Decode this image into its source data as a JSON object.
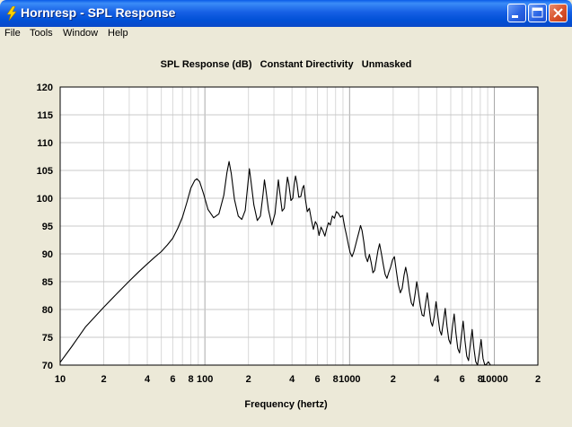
{
  "window": {
    "title": "Hornresp - SPL Response"
  },
  "menu": [
    "File",
    "Tools",
    "Window",
    "Help"
  ],
  "chart_data": {
    "type": "line",
    "title_parts": [
      "SPL Response (dB)",
      "Constant Directivity",
      "Unmasked"
    ],
    "xlabel": "Frequency (hertz)",
    "ylabel": "",
    "xscale": "log",
    "xlim": [
      10,
      20000
    ],
    "ylim": [
      70,
      120
    ],
    "x_tick_labels": [
      {
        "value": 10,
        "label": "10"
      },
      {
        "value": 20,
        "label": "2"
      },
      {
        "value": 40,
        "label": "4"
      },
      {
        "value": 60,
        "label": "6"
      },
      {
        "value": 80,
        "label": "8"
      },
      {
        "value": 100,
        "label": "100"
      },
      {
        "value": 200,
        "label": "2"
      },
      {
        "value": 400,
        "label": "4"
      },
      {
        "value": 600,
        "label": "6"
      },
      {
        "value": 800,
        "label": "8"
      },
      {
        "value": 1000,
        "label": "1000"
      },
      {
        "value": 2000,
        "label": "2"
      },
      {
        "value": 4000,
        "label": "4"
      },
      {
        "value": 6000,
        "label": "6"
      },
      {
        "value": 8000,
        "label": "8"
      },
      {
        "value": 10000,
        "label": "10000"
      },
      {
        "value": 20000,
        "label": "2"
      }
    ],
    "y_ticks": [
      70,
      75,
      80,
      85,
      90,
      95,
      100,
      105,
      110,
      115,
      120
    ],
    "grid": true,
    "series": [
      {
        "color": "#000000",
        "points": [
          [
            10,
            70.5
          ],
          [
            12,
            73.3
          ],
          [
            15,
            76.9
          ],
          [
            20,
            80.4
          ],
          [
            25,
            83.0
          ],
          [
            30,
            85.1
          ],
          [
            35,
            86.8
          ],
          [
            40,
            88.2
          ],
          [
            45,
            89.4
          ],
          [
            50,
            90.4
          ],
          [
            55,
            91.6
          ],
          [
            60,
            92.8
          ],
          [
            65,
            94.6
          ],
          [
            70,
            96.6
          ],
          [
            75,
            99.2
          ],
          [
            80,
            101.8
          ],
          [
            85,
            103.2
          ],
          [
            88,
            103.5
          ],
          [
            92,
            103.0
          ],
          [
            98,
            100.8
          ],
          [
            105,
            98.0
          ],
          [
            115,
            96.5
          ],
          [
            125,
            97.2
          ],
          [
            135,
            100.5
          ],
          [
            142,
            104.6
          ],
          [
            147,
            106.6
          ],
          [
            152,
            104.5
          ],
          [
            160,
            99.8
          ],
          [
            170,
            96.8
          ],
          [
            180,
            96.2
          ],
          [
            190,
            97.8
          ],
          [
            198,
            102.5
          ],
          [
            203,
            105.3
          ],
          [
            208,
            103.2
          ],
          [
            218,
            98.8
          ],
          [
            230,
            96.0
          ],
          [
            242,
            96.8
          ],
          [
            252,
            100.7
          ],
          [
            258,
            103.3
          ],
          [
            264,
            101.5
          ],
          [
            275,
            97.9
          ],
          [
            290,
            95.2
          ],
          [
            305,
            97.2
          ],
          [
            316,
            101.2
          ],
          [
            322,
            103.3
          ],
          [
            329,
            101.2
          ],
          [
            342,
            97.7
          ],
          [
            354,
            98.2
          ],
          [
            364,
            101.5
          ],
          [
            372,
            103.8
          ],
          [
            380,
            102.6
          ],
          [
            393,
            99.6
          ],
          [
            405,
            100.0
          ],
          [
            414,
            102.5
          ],
          [
            423,
            104.0
          ],
          [
            432,
            102.8
          ],
          [
            445,
            100.2
          ],
          [
            460,
            100.3
          ],
          [
            473,
            101.8
          ],
          [
            483,
            102.3
          ],
          [
            495,
            99.8
          ],
          [
            510,
            97.6
          ],
          [
            527,
            98.2
          ],
          [
            545,
            96.1
          ],
          [
            562,
            94.4
          ],
          [
            580,
            95.8
          ],
          [
            597,
            95.2
          ],
          [
            615,
            93.3
          ],
          [
            635,
            94.8
          ],
          [
            655,
            94.1
          ],
          [
            675,
            93.2
          ],
          [
            695,
            94.6
          ],
          [
            715,
            95.6
          ],
          [
            735,
            95.2
          ],
          [
            760,
            96.8
          ],
          [
            785,
            96.4
          ],
          [
            810,
            97.6
          ],
          [
            835,
            97.3
          ],
          [
            865,
            96.6
          ],
          [
            895,
            96.9
          ],
          [
            925,
            94.8
          ],
          [
            955,
            93.2
          ],
          [
            985,
            91.4
          ],
          [
            1010,
            90.2
          ],
          [
            1040,
            89.5
          ],
          [
            1070,
            90.4
          ],
          [
            1100,
            91.6
          ],
          [
            1130,
            92.8
          ],
          [
            1160,
            93.9
          ],
          [
            1190,
            95.1
          ],
          [
            1220,
            94.2
          ],
          [
            1255,
            92.1
          ],
          [
            1290,
            89.6
          ],
          [
            1330,
            88.6
          ],
          [
            1370,
            89.9
          ],
          [
            1410,
            88.4
          ],
          [
            1450,
            86.6
          ],
          [
            1490,
            87.0
          ],
          [
            1530,
            88.8
          ],
          [
            1570,
            90.6
          ],
          [
            1610,
            91.8
          ],
          [
            1660,
            90.0
          ],
          [
            1710,
            88.0
          ],
          [
            1760,
            86.3
          ],
          [
            1810,
            85.6
          ],
          [
            1860,
            86.6
          ],
          [
            1920,
            87.6
          ],
          [
            1980,
            88.9
          ],
          [
            2040,
            89.5
          ],
          [
            2100,
            87.0
          ],
          [
            2170,
            84.5
          ],
          [
            2240,
            83.0
          ],
          [
            2310,
            83.8
          ],
          [
            2380,
            86.2
          ],
          [
            2440,
            87.6
          ],
          [
            2510,
            86.0
          ],
          [
            2590,
            83.2
          ],
          [
            2670,
            81.2
          ],
          [
            2750,
            80.6
          ],
          [
            2830,
            82.6
          ],
          [
            2910,
            85.0
          ],
          [
            2990,
            83.0
          ],
          [
            3080,
            80.6
          ],
          [
            3170,
            79.0
          ],
          [
            3260,
            78.8
          ],
          [
            3350,
            81.0
          ],
          [
            3440,
            83.0
          ],
          [
            3540,
            80.4
          ],
          [
            3640,
            77.8
          ],
          [
            3740,
            77.0
          ],
          [
            3850,
            78.8
          ],
          [
            3960,
            81.4
          ],
          [
            4080,
            78.8
          ],
          [
            4200,
            76.2
          ],
          [
            4320,
            75.4
          ],
          [
            4450,
            77.8
          ],
          [
            4580,
            80.2
          ],
          [
            4710,
            77.0
          ],
          [
            4850,
            74.6
          ],
          [
            4990,
            73.8
          ],
          [
            5130,
            76.8
          ],
          [
            5280,
            79.2
          ],
          [
            5430,
            75.8
          ],
          [
            5590,
            73.0
          ],
          [
            5750,
            72.2
          ],
          [
            5920,
            75.2
          ],
          [
            6090,
            77.9
          ],
          [
            6270,
            74.4
          ],
          [
            6450,
            71.6
          ],
          [
            6640,
            70.8
          ],
          [
            6830,
            73.8
          ],
          [
            7030,
            76.4
          ],
          [
            7230,
            73.0
          ],
          [
            7440,
            70.6
          ],
          [
            7660,
            70.0
          ],
          [
            7880,
            72.2
          ],
          [
            8110,
            74.6
          ],
          [
            8350,
            71.2
          ],
          [
            8600,
            70.0
          ],
          [
            8850,
            70.2
          ],
          [
            9100,
            70.6
          ],
          [
            9400,
            70.0
          ],
          [
            9700,
            70.0
          ]
        ]
      }
    ]
  }
}
